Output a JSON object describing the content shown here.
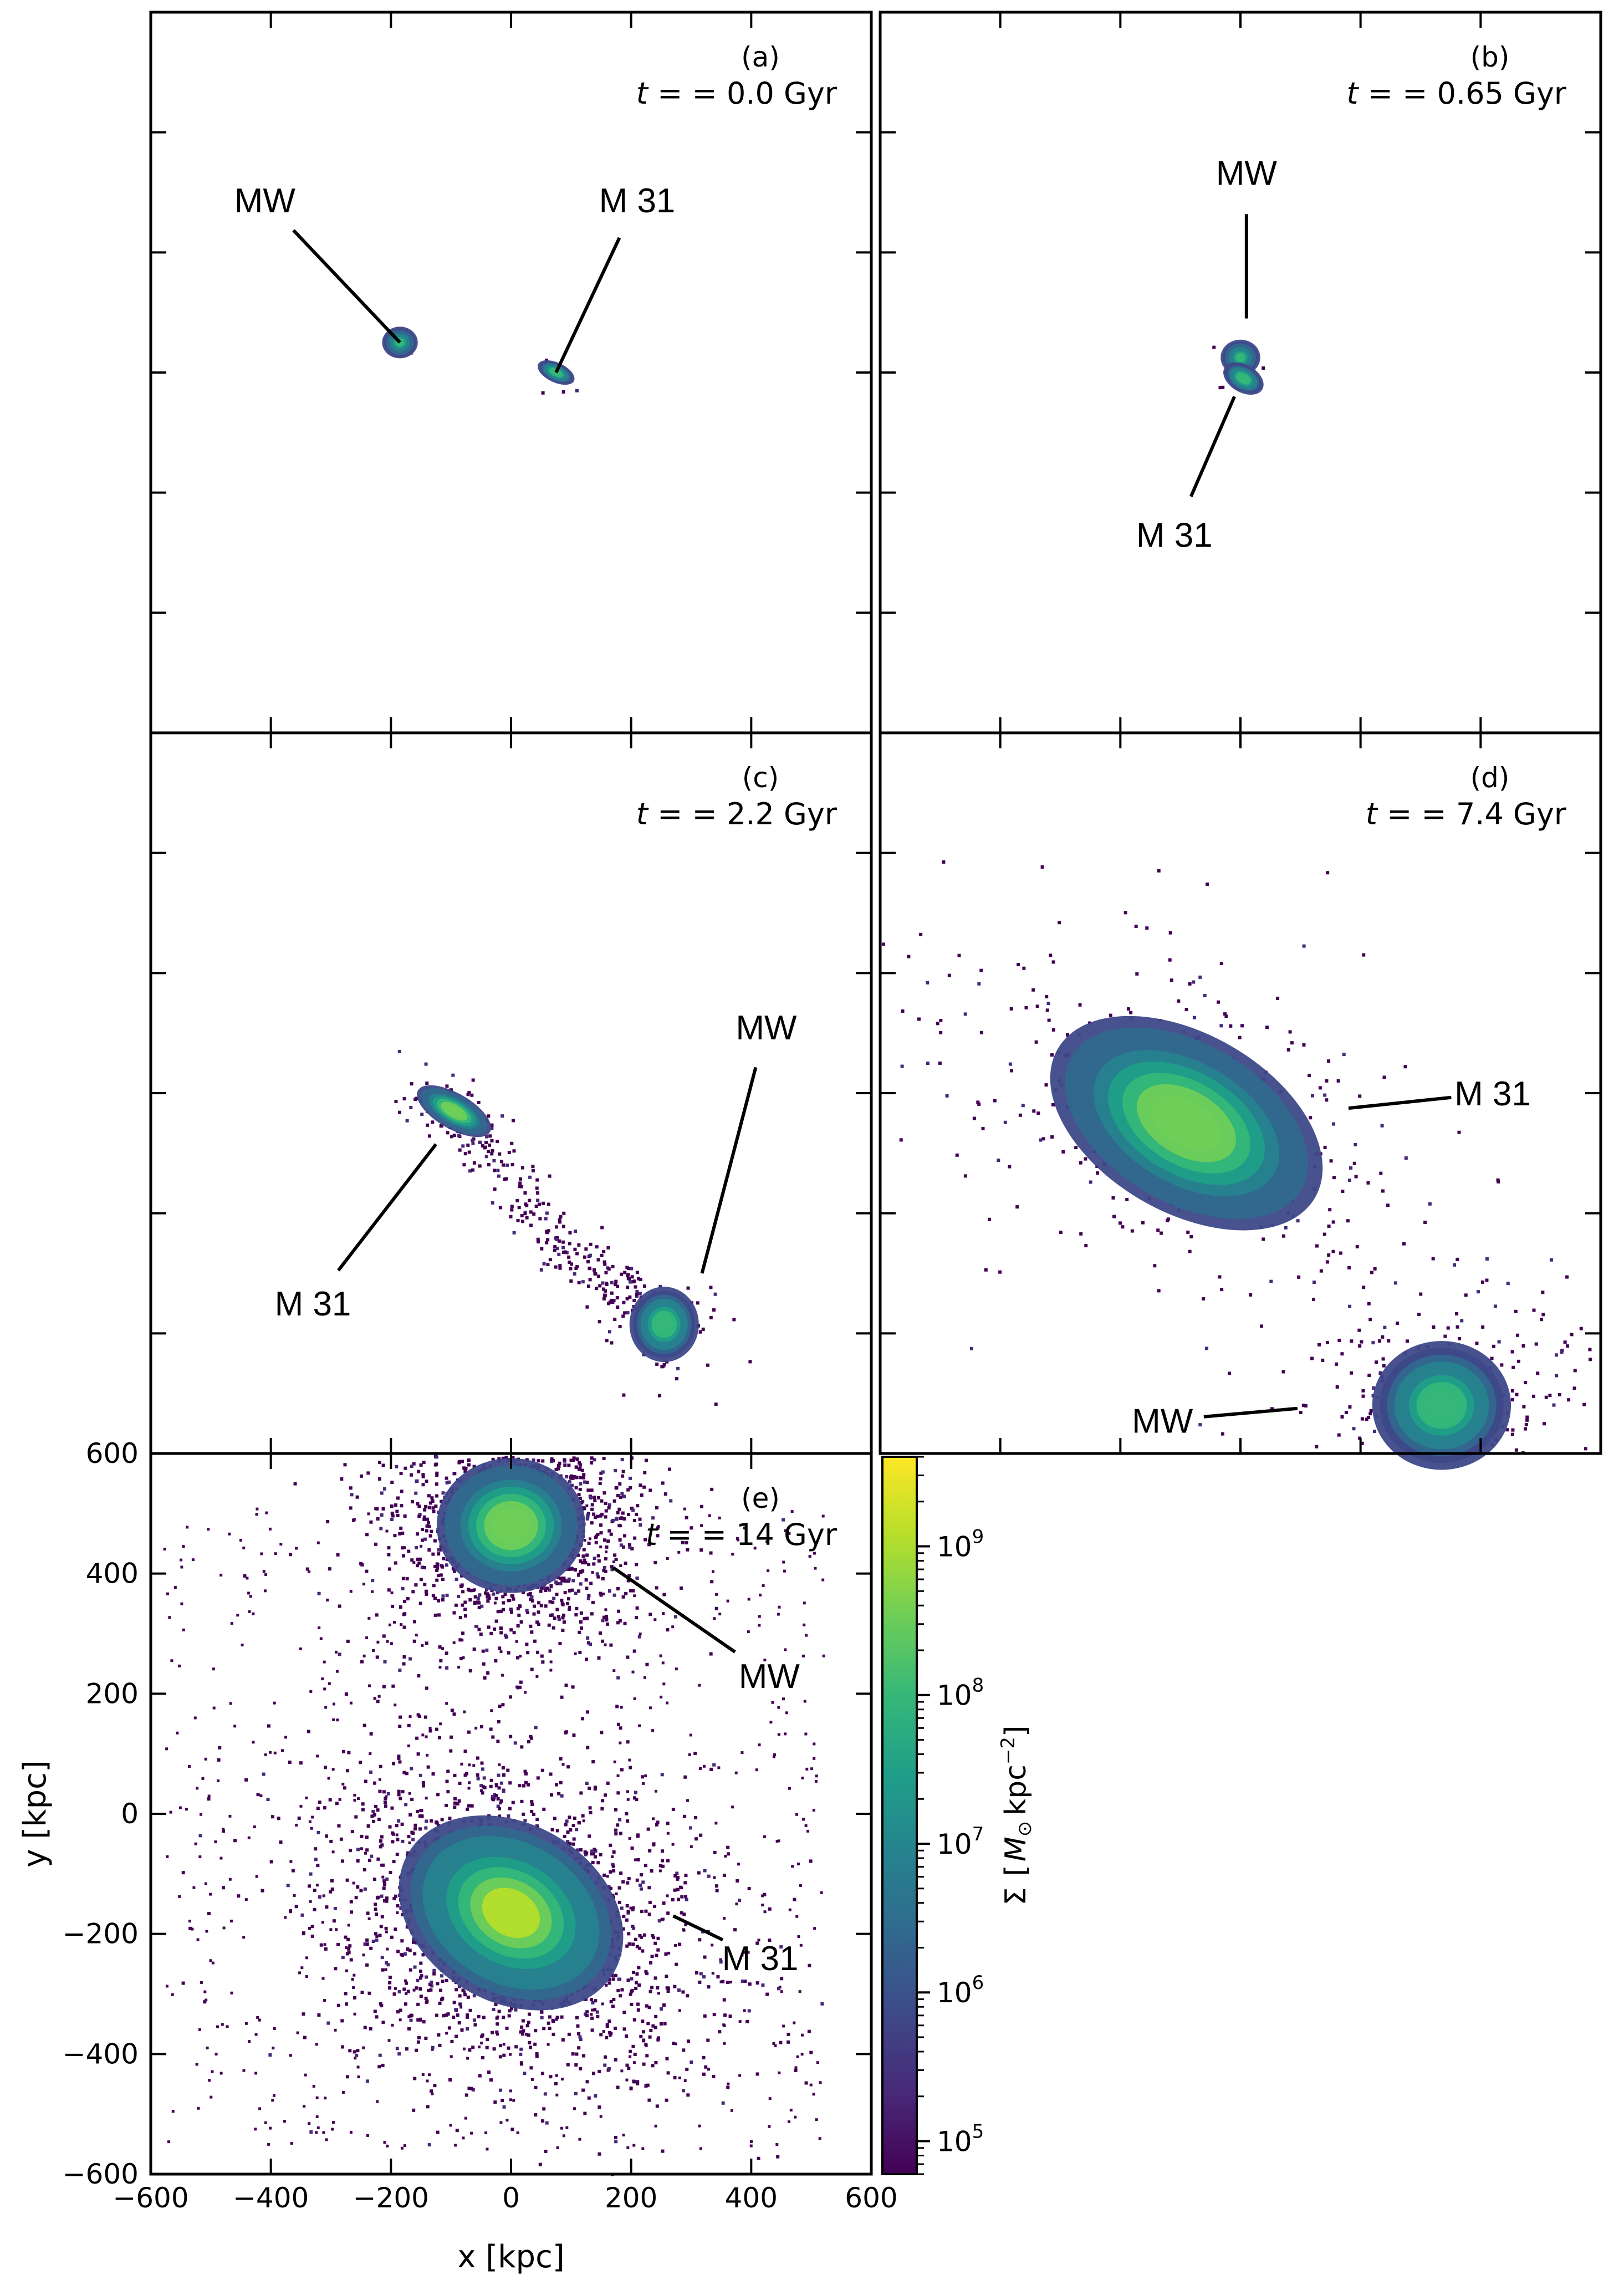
{
  "chart_data": {
    "type": "heatmap",
    "title": "",
    "xlabel": "x [kpc]",
    "ylabel": "y [kpc]",
    "xlim": [
      -600,
      600
    ],
    "ylim": [
      -600,
      600
    ],
    "ticks": {
      "x": [
        -600,
        -400,
        -200,
        0,
        200,
        400,
        600
      ],
      "x_labels": [
        "−600",
        "−400",
        "−200",
        "0",
        "200",
        "400",
        "600"
      ],
      "y": [
        -600,
        -400,
        -200,
        0,
        200,
        400,
        600
      ],
      "y_labels": [
        "−600",
        "−400",
        "−200",
        "0",
        "200",
        "400",
        "600"
      ]
    },
    "colorbar": {
      "label": "Σ  [M⊙ kpc⁻²]",
      "label_parts": {
        "sym": "Σ",
        "unit_open": "[",
        "unit_m": "M",
        "unit_sun": "⊙",
        "unit_kpc": "kpc",
        "unit_exp": "−2",
        "unit_close": "]"
      },
      "scale": "log",
      "range": [
        60000.0,
        4000000000.0
      ],
      "ticks": [
        {
          "exp": 5,
          "base": "10",
          "sup": "5"
        },
        {
          "exp": 6,
          "base": "10",
          "sup": "6"
        },
        {
          "exp": 7,
          "base": "10",
          "sup": "7"
        },
        {
          "exp": 8,
          "base": "10",
          "sup": "8"
        },
        {
          "exp": 9,
          "base": "10",
          "sup": "9"
        }
      ],
      "colormap": "viridis",
      "colors": [
        "#440154",
        "#482878",
        "#3e4989",
        "#31688e",
        "#26828e",
        "#1f9e89",
        "#35b779",
        "#6ece58",
        "#b5de2b",
        "#fde725"
      ]
    },
    "panels": [
      {
        "tag": "(a)",
        "time_prefix": "t = ",
        "time_value": "0.0",
        "time_unit": " Gyr",
        "labels": [
          {
            "text": "MW",
            "target": [
              -185,
              50
            ],
            "text_at": [
              -410,
              287
            ]
          },
          {
            "text": "M 31",
            "target": [
              75,
              0
            ],
            "text_at": [
              210,
              287
            ]
          }
        ],
        "galaxies": [
          {
            "x": -185,
            "y": 50,
            "core": 0.5,
            "halo": 5,
            "sx": 18,
            "sy": 16,
            "angle": 0,
            "stream": 0
          },
          {
            "x": 75,
            "y": 0,
            "core": 0.6,
            "halo": 4,
            "sx": 20,
            "sy": 10,
            "angle": -25,
            "stream": 0
          }
        ]
      },
      {
        "tag": "(b)",
        "time_prefix": "t = ",
        "time_value": "0.65",
        "time_unit": " Gyr",
        "labels": [
          {
            "text": "MW",
            "target": [
              10,
              90
            ],
            "text_at": [
              10,
              333
            ]
          },
          {
            "text": "M 31",
            "target": [
              -10,
              -40
            ],
            "text_at": [
              -110,
              -270
            ]
          }
        ],
        "galaxies": [
          {
            "x": 0,
            "y": 25,
            "core": 0.5,
            "halo": 6,
            "sx": 20,
            "sy": 18,
            "angle": 0,
            "stream": 0
          },
          {
            "x": 5,
            "y": -10,
            "core": 0.6,
            "halo": 6,
            "sx": 22,
            "sy": 14,
            "angle": -30,
            "stream": 0
          }
        ]
      },
      {
        "tag": "(c)",
        "time_prefix": "t = ",
        "time_value": "2.2",
        "time_unit": " Gyr",
        "labels": [
          {
            "text": "M 31",
            "target": [
              -125,
              -85
            ],
            "text_at": [
              -330,
              -350
            ]
          },
          {
            "text": "MW",
            "target": [
              318,
              -300
            ],
            "text_at": [
              425,
              110
            ]
          }
        ],
        "galaxies": [
          {
            "x": -95,
            "y": -30,
            "core": 0.7,
            "halo": 60,
            "sx": 42,
            "sy": 18,
            "angle": -30,
            "stream": 260
          },
          {
            "x": 255,
            "y": -385,
            "core": 0.6,
            "halo": 60,
            "sx": 35,
            "sy": 38,
            "angle": 0,
            "stream": 0
          }
        ]
      },
      {
        "tag": "(d)",
        "time_prefix": "t = ",
        "time_value": "7.4",
        "time_unit": " Gyr",
        "labels": [
          {
            "text": "M 31",
            "target": [
              180,
              -25
            ],
            "text_at": [
              420,
              0
            ]
          },
          {
            "text": "MW",
            "target": [
              95,
              -525
            ],
            "text_at": [
              -130,
              -545
            ]
          }
        ],
        "galaxies": [
          {
            "x": -90,
            "y": -50,
            "core": 0.7,
            "halo": 420,
            "sx": 150,
            "sy": 90,
            "angle": -30,
            "stream": 0
          },
          {
            "x": 335,
            "y": -520,
            "core": 0.6,
            "halo": 320,
            "sx": 70,
            "sy": 65,
            "angle": 0,
            "stream": 0
          }
        ]
      },
      {
        "tag": "(e)",
        "time_prefix": "t = ",
        "time_value": "14",
        "time_unit": " Gyr",
        "labels": [
          {
            "text": "MW",
            "target": [
              170,
              410
            ],
            "text_at": [
              430,
              230
            ]
          },
          {
            "text": "M 31",
            "target": [
              270,
              -170
            ],
            "text_at": [
              415,
              -240
            ]
          }
        ],
        "galaxies": [
          {
            "x": 0,
            "y": 480,
            "core": 0.7,
            "halo": 1500,
            "sx": 75,
            "sy": 68,
            "angle": 0,
            "stream": 0
          },
          {
            "x": 0,
            "y": -165,
            "core": 0.75,
            "halo": 1900,
            "sx": 120,
            "sy": 90,
            "angle": -30,
            "stream": 0
          }
        ],
        "background_points": 650
      }
    ]
  }
}
